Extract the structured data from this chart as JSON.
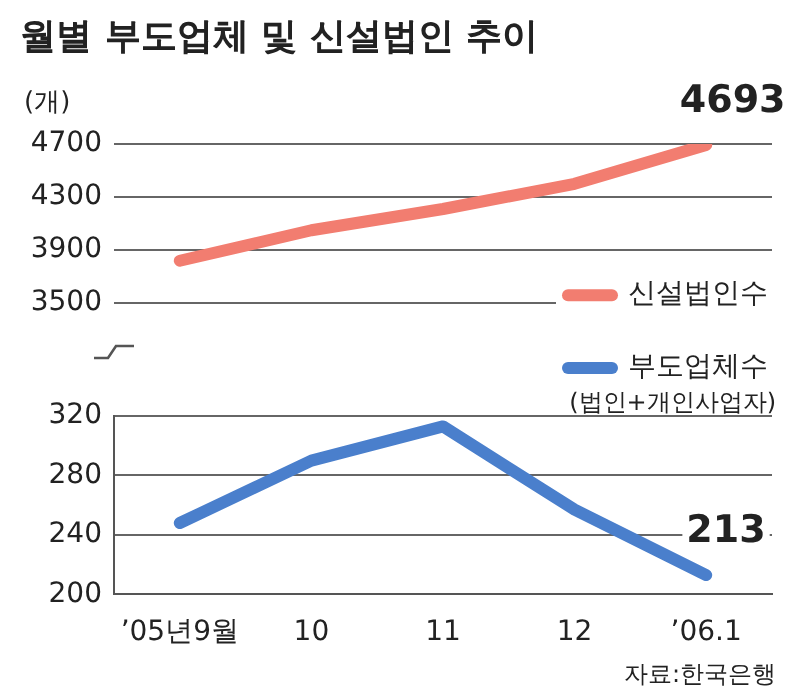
{
  "chart_data": [
    {
      "type": "line",
      "title": "월별 부도업체 및 신설법인 추이",
      "ylabel": "(개)",
      "categories": [
        null,
        null,
        null,
        null,
        null
      ],
      "series": [
        {
          "name": "신설법인수",
          "color": "#f27d70",
          "values": [
            3820,
            4050,
            4210,
            4400,
            4693
          ],
          "value_labels": [
            null,
            null,
            null,
            null,
            "4693"
          ]
        }
      ],
      "ylim": [
        3500,
        4700
      ],
      "yticks": [
        3500,
        3900,
        4300,
        4700
      ],
      "grid": "y",
      "legend": "bottom right",
      "tick_labels": "y",
      "marker": "none"
    },
    {
      "type": "line",
      "categories": [
        "’05년9월",
        "10",
        "11",
        "12",
        "’06.1"
      ],
      "series": [
        {
          "name": "부도업체수",
          "color": "#4a7fcc",
          "values": [
            248,
            290,
            313,
            257,
            213
          ],
          "value_labels": [
            null,
            null,
            null,
            null,
            "213"
          ]
        }
      ],
      "annotations": [
        "(법인+개인사업자)",
        "자료:한국은행"
      ],
      "ylim": [
        200,
        320
      ],
      "yticks": [
        200,
        240,
        280,
        320
      ],
      "grid": "y",
      "legend": "top right",
      "marker": "none"
    }
  ]
}
